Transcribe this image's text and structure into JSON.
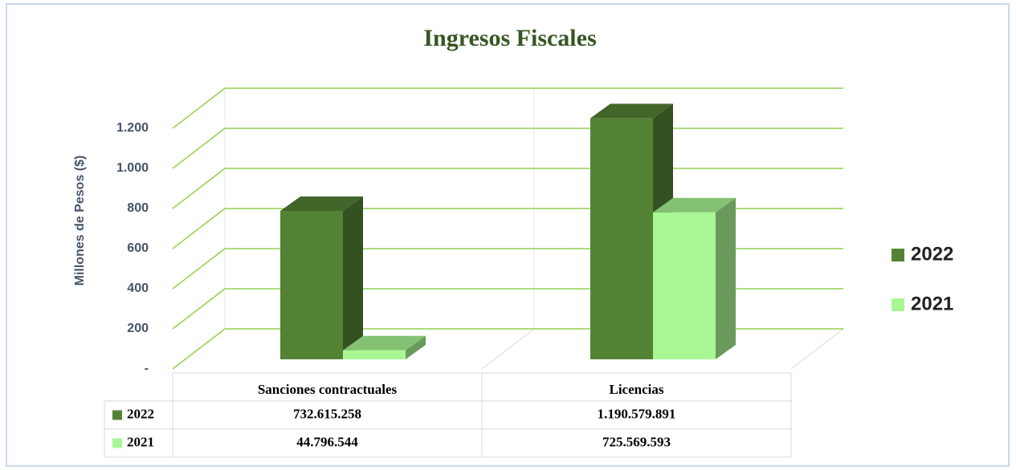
{
  "chart_data": {
    "type": "bar3d",
    "title": "Ingresos  Fiscales",
    "y_label": "Millones de Pesos ($)",
    "categories": [
      "Sanciones contractuales",
      "Licencias"
    ],
    "series": [
      {
        "name": "2022",
        "color": "#548235",
        "values": [
          732.615258,
          1190.579891
        ],
        "value_labels": [
          "732.615.258",
          "1.190.579.891"
        ]
      },
      {
        "name": "2021",
        "color": "#a9f794",
        "values": [
          44.796544,
          725.569593
        ],
        "value_labels": [
          "44.796.544",
          "725.569.593"
        ]
      }
    ],
    "ylim": [
      0,
      1200
    ],
    "yticks": [
      {
        "value": 0,
        "label": "-"
      },
      200,
      400,
      600,
      800,
      {
        "value": 1000,
        "label": "1.000"
      },
      {
        "value": 1200,
        "label": "1.200"
      }
    ],
    "grid": true,
    "legend": "right",
    "data_table": true
  }
}
